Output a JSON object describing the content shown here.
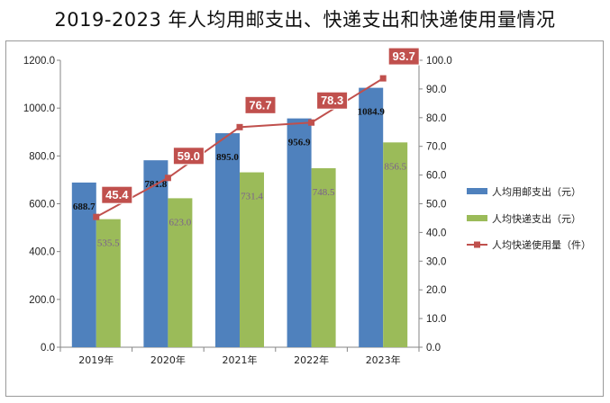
{
  "title": "2019-2023 年人均用邮支出、快递支出和快递使用量情况",
  "chart_data": {
    "type": "bar",
    "categories": [
      "2019年",
      "2020年",
      "2021年",
      "2022年",
      "2023年"
    ],
    "series": [
      {
        "name": "人均用邮支出（元）",
        "type": "bar",
        "axis": "left",
        "color": "#4f81bd",
        "values": [
          688.7,
          781.8,
          895.0,
          956.9,
          1084.9
        ]
      },
      {
        "name": "人均快递支出（元）",
        "type": "bar",
        "axis": "left",
        "color": "#9bbb59",
        "values": [
          535.5,
          623.0,
          731.4,
          748.5,
          856.5
        ]
      },
      {
        "name": "人均快递使用量（件）",
        "type": "line",
        "axis": "right",
        "color": "#c0504d",
        "values": [
          45.4,
          59.0,
          76.7,
          78.3,
          93.7
        ]
      }
    ],
    "y_left": {
      "range": [
        0,
        1200
      ],
      "ticks": [
        "0.0",
        "200.0",
        "400.0",
        "600.0",
        "800.0",
        "1000.0",
        "1200.0"
      ]
    },
    "y_right": {
      "range": [
        0,
        100
      ],
      "ticks": [
        "0.0",
        "10.0",
        "20.0",
        "30.0",
        "40.0",
        "50.0",
        "60.0",
        "70.0",
        "80.0",
        "90.0",
        "100.0"
      ]
    },
    "legend_position": "right",
    "grid": false
  }
}
